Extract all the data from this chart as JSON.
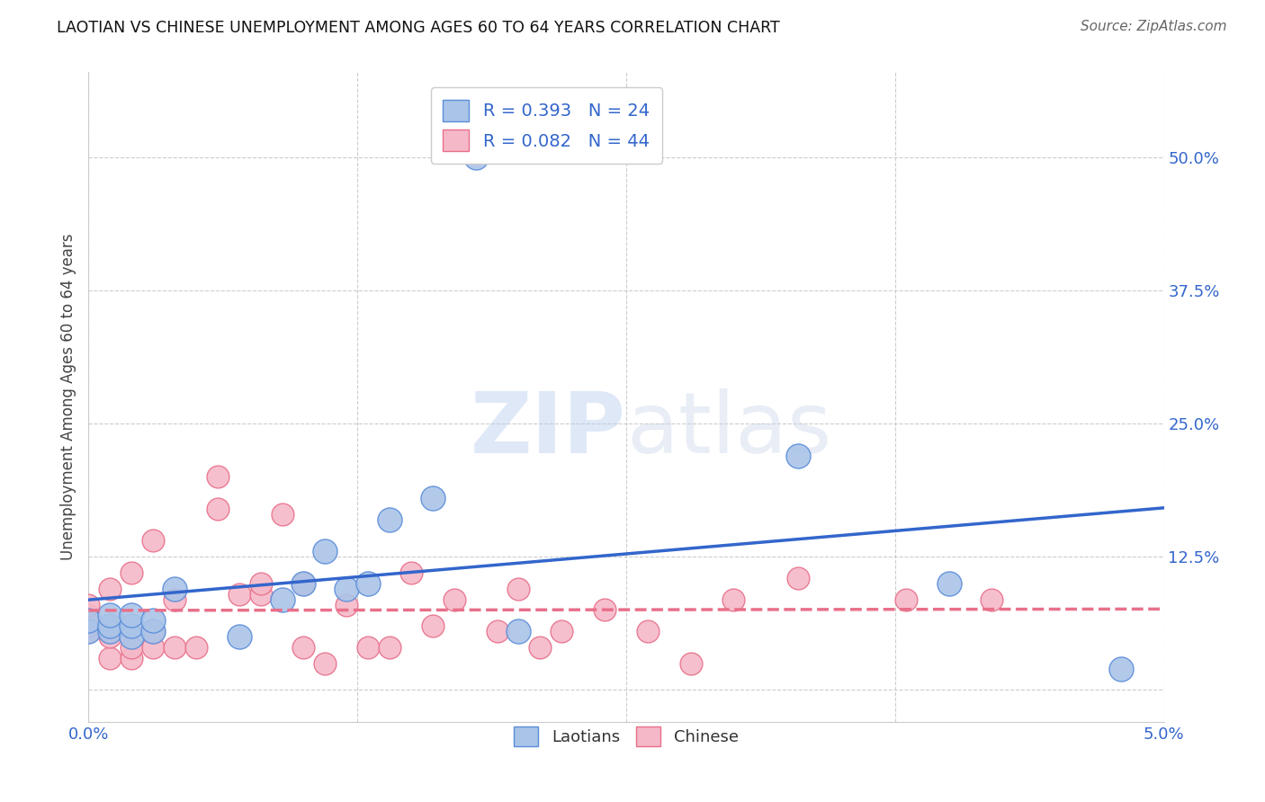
{
  "title": "LAOTIAN VS CHINESE UNEMPLOYMENT AMONG AGES 60 TO 64 YEARS CORRELATION CHART",
  "source": "Source: ZipAtlas.com",
  "ylabel": "Unemployment Among Ages 60 to 64 years",
  "background_color": "#ffffff",
  "grid_color": "#cccccc",
  "laotian_color": "#aac4e8",
  "laotian_edge_color": "#5b8dd9",
  "laotian_line_color": "#3366cc",
  "chinese_color": "#f5b8c8",
  "chinese_edge_color": "#e8708a",
  "chinese_line_color": "#e8708a",
  "laotian_R": "0.393",
  "laotian_N": "24",
  "chinese_R": "0.082",
  "chinese_N": "44",
  "watermark_zip": "ZIP",
  "watermark_atlas": "atlas",
  "xlim": [
    0.0,
    0.05
  ],
  "ylim": [
    -0.03,
    0.58
  ],
  "ytick_vals": [
    0.0,
    0.125,
    0.25,
    0.375,
    0.5
  ],
  "ytick_labels": [
    "",
    "12.5%",
    "25.0%",
    "37.5%",
    "50.0%"
  ],
  "xtick_vals": [
    0.0,
    0.0125,
    0.025,
    0.0375,
    0.05
  ],
  "xtick_labels": [
    "0.0%",
    "",
    "",
    "",
    "5.0%"
  ],
  "laotian_x": [
    0.0,
    0.0,
    0.001,
    0.001,
    0.001,
    0.002,
    0.002,
    0.002,
    0.003,
    0.003,
    0.004,
    0.007,
    0.009,
    0.01,
    0.011,
    0.012,
    0.013,
    0.014,
    0.016,
    0.018,
    0.02,
    0.033,
    0.04,
    0.048
  ],
  "laotian_y": [
    0.055,
    0.065,
    0.055,
    0.06,
    0.07,
    0.05,
    0.06,
    0.07,
    0.055,
    0.065,
    0.095,
    0.05,
    0.085,
    0.1,
    0.13,
    0.095,
    0.1,
    0.16,
    0.18,
    0.5,
    0.055,
    0.22,
    0.1,
    0.02
  ],
  "chinese_x": [
    0.0,
    0.0,
    0.0,
    0.0,
    0.0,
    0.001,
    0.001,
    0.001,
    0.001,
    0.002,
    0.002,
    0.002,
    0.003,
    0.003,
    0.003,
    0.004,
    0.004,
    0.005,
    0.006,
    0.006,
    0.007,
    0.008,
    0.008,
    0.009,
    0.01,
    0.01,
    0.011,
    0.012,
    0.013,
    0.014,
    0.015,
    0.016,
    0.017,
    0.019,
    0.02,
    0.021,
    0.022,
    0.024,
    0.026,
    0.028,
    0.03,
    0.033,
    0.038,
    0.042
  ],
  "chinese_y": [
    0.055,
    0.06,
    0.065,
    0.07,
    0.08,
    0.03,
    0.05,
    0.055,
    0.095,
    0.03,
    0.04,
    0.11,
    0.04,
    0.055,
    0.14,
    0.04,
    0.085,
    0.04,
    0.17,
    0.2,
    0.09,
    0.09,
    0.1,
    0.165,
    0.04,
    0.1,
    0.025,
    0.08,
    0.04,
    0.04,
    0.11,
    0.06,
    0.085,
    0.055,
    0.095,
    0.04,
    0.055,
    0.075,
    0.055,
    0.025,
    0.085,
    0.105,
    0.085,
    0.085
  ]
}
